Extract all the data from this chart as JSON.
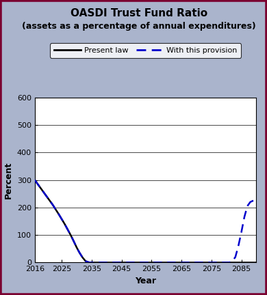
{
  "title": "OASDI Trust Fund Ratio",
  "subtitle": "(assets as a percentage of annual expenditures)",
  "xlabel": "Year",
  "ylabel": "Percent",
  "xlim": [
    2016,
    2090
  ],
  "ylim": [
    0,
    600
  ],
  "xticks": [
    2016,
    2025,
    2035,
    2045,
    2055,
    2065,
    2075,
    2085
  ],
  "yticks": [
    0,
    100,
    200,
    300,
    400,
    500,
    600
  ],
  "background_color": "#aab4cc",
  "plot_bg_color": "#ffffff",
  "present_law_x": [
    2016,
    2017,
    2018,
    2019,
    2020,
    2021,
    2022,
    2023,
    2024,
    2025,
    2026,
    2027,
    2028,
    2029,
    2030,
    2031,
    2032,
    2033,
    2034,
    2034.5,
    2090
  ],
  "present_law_y": [
    300,
    285,
    270,
    255,
    240,
    225,
    210,
    193,
    176,
    158,
    140,
    120,
    100,
    78,
    55,
    35,
    18,
    5,
    1,
    0,
    0
  ],
  "provision_x": [
    2016,
    2017,
    2018,
    2019,
    2020,
    2021,
    2022,
    2023,
    2024,
    2025,
    2026,
    2027,
    2028,
    2029,
    2030,
    2031,
    2032,
    2033,
    2034,
    2034.5,
    2081,
    2082,
    2083,
    2084,
    2085,
    2086,
    2087,
    2088,
    2089
  ],
  "provision_y": [
    300,
    285,
    270,
    255,
    240,
    225,
    210,
    193,
    176,
    158,
    140,
    120,
    100,
    78,
    55,
    35,
    18,
    5,
    1,
    0,
    0,
    5,
    20,
    60,
    110,
    165,
    205,
    220,
    225
  ],
  "present_law_color": "#000000",
  "provision_color": "#0000cc",
  "legend_labels": [
    "Present law",
    "With this provision"
  ],
  "title_fontsize": 11,
  "subtitle_fontsize": 9,
  "axis_label_fontsize": 9,
  "tick_fontsize": 8,
  "legend_fontsize": 8,
  "outer_border_color": "#7a0030"
}
